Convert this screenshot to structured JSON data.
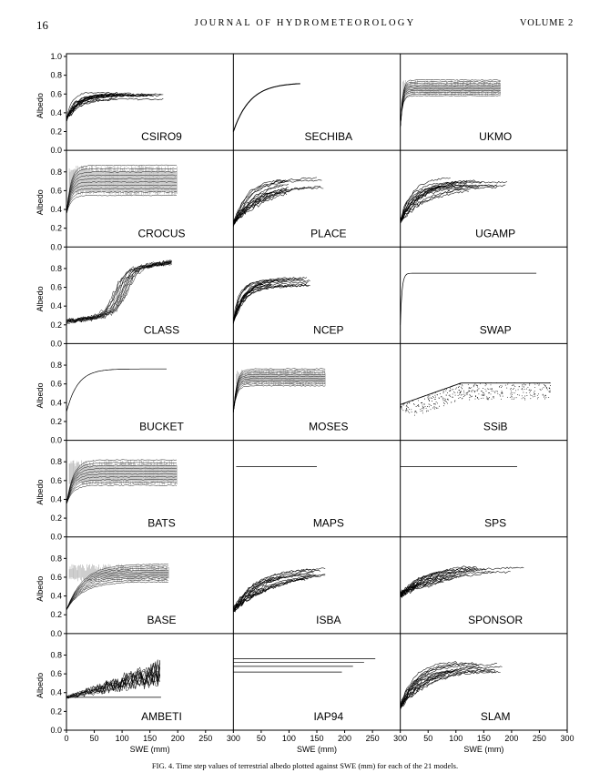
{
  "header": {
    "page_number": "16",
    "journal": "JOURNAL OF HYDROMETEOROLOGY",
    "volume": "VOLUME 2"
  },
  "caption": "FIG. 4. Time step values of terrestrial albedo plotted against SWE (mm) for each of the 21 models.",
  "chart_data": {
    "type": "scatter",
    "xlabel": "SWE (mm)",
    "ylabel": "Albedo",
    "xlim": [
      0,
      300
    ],
    "ylim": [
      0.0,
      1.0
    ],
    "x_ticks": [
      "0",
      "50",
      "100",
      "150",
      "200",
      "250",
      "300"
    ],
    "y_ticks": [
      "0.0",
      "0.2",
      "0.4",
      "0.6",
      "0.8",
      "1.0"
    ],
    "panels": [
      {
        "name": "CSIRO9",
        "shape": "bandrise",
        "a0": 0.3,
        "a1": 0.62,
        "k": 14,
        "xmax": 200,
        "spread": 0.08
      },
      {
        "name": "SECHIBA",
        "shape": "curve",
        "a0": 0.2,
        "a1": 0.72,
        "k": 30,
        "xmax": 120
      },
      {
        "name": "UKMO",
        "shape": "band",
        "a0": 0.25,
        "lo": 0.58,
        "hi": 0.75,
        "k": 4,
        "xmax": 180
      },
      {
        "name": "CROCUS",
        "shape": "band",
        "a0": 0.35,
        "lo": 0.55,
        "hi": 0.87,
        "k": 8,
        "xmax": 200
      },
      {
        "name": "PLACE",
        "shape": "fan",
        "a0": 0.22,
        "a1": 0.75,
        "k": 40,
        "xmax": 185
      },
      {
        "name": "UGAMP",
        "shape": "fan",
        "a0": 0.25,
        "a1": 0.75,
        "k": 30,
        "xmax": 195
      },
      {
        "name": "CLASS",
        "shape": "class",
        "a0": 0.22,
        "a1": 0.75,
        "k": 0,
        "xmax": 190
      },
      {
        "name": "NCEP",
        "shape": "fan",
        "a0": 0.2,
        "a1": 0.72,
        "k": 12,
        "xmax": 150
      },
      {
        "name": "SWAP",
        "shape": "flat",
        "a0": 0.2,
        "a1": 0.75,
        "k": 3,
        "xmax": 245
      },
      {
        "name": "BUCKET",
        "shape": "flat",
        "a0": 0.3,
        "a1": 0.76,
        "k": 20,
        "xmax": 180
      },
      {
        "name": "MOSES",
        "shape": "band",
        "a0": 0.3,
        "lo": 0.58,
        "hi": 0.76,
        "k": 6,
        "xmax": 165
      },
      {
        "name": "SSiB",
        "shape": "ssib",
        "a0": 0.38,
        "a1": 0.6,
        "k": 0,
        "xmax": 270
      },
      {
        "name": "BATS",
        "shape": "band",
        "a0": 0.35,
        "lo": 0.55,
        "hi": 0.82,
        "k": 12,
        "xmax": 200
      },
      {
        "name": "MAPS",
        "shape": "hline",
        "a1": 0.75,
        "xmin": 5,
        "xmax": 150
      },
      {
        "name": "SPS",
        "shape": "hline",
        "a1": 0.75,
        "xmin": 0,
        "xmax": 210
      },
      {
        "name": "BASE",
        "shape": "band",
        "a0": 0.25,
        "lo": 0.55,
        "hi": 0.74,
        "k": 30,
        "xmax": 185
      },
      {
        "name": "ISBA",
        "shape": "fan",
        "a0": 0.22,
        "a1": 0.72,
        "k": 45,
        "xmax": 170
      },
      {
        "name": "SPONSOR",
        "shape": "fan",
        "a0": 0.38,
        "a1": 0.76,
        "k": 50,
        "xmax": 225
      },
      {
        "name": "AMBETI",
        "shape": "ambeti",
        "a0": 0.35,
        "a1": 0.75,
        "k": 0,
        "xmax": 170
      },
      {
        "name": "IAP94",
        "shape": "iap",
        "levels": [
          0.76,
          0.72,
          0.68,
          0.62
        ],
        "xmax": 255
      },
      {
        "name": "SLAM",
        "shape": "fan",
        "a0": 0.22,
        "a1": 0.74,
        "k": 35,
        "xmax": 190
      }
    ]
  }
}
